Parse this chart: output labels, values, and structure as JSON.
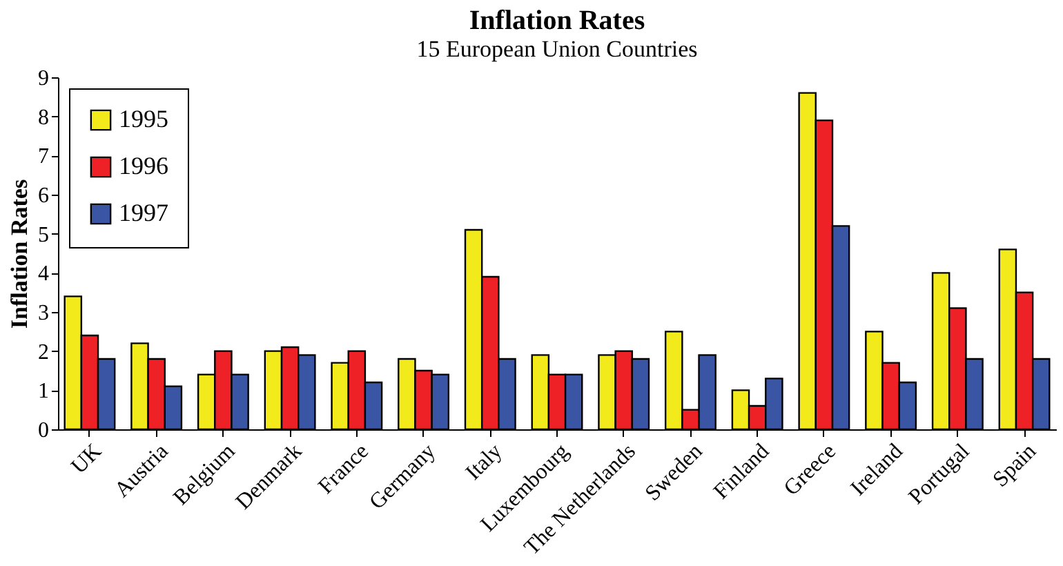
{
  "chart_data": {
    "type": "bar",
    "title": "Inflation Rates",
    "subtitle": "15 European Union Countries",
    "ylabel": "Inflation Rates",
    "categories": [
      "UK",
      "Austria",
      "Belgium",
      "Denmark",
      "France",
      "Germany",
      "Italy",
      "Luxembourg",
      "The Netherlands",
      "Sweden",
      "Finland",
      "Greece",
      "Ireland",
      "Portugal",
      "Spain"
    ],
    "series": [
      {
        "name": "1995",
        "color": "#f2ea1a",
        "values": [
          3.4,
          2.2,
          1.4,
          2.0,
          1.7,
          1.8,
          5.1,
          1.9,
          1.9,
          2.5,
          1.0,
          8.6,
          2.5,
          4.0,
          4.6
        ]
      },
      {
        "name": "1996",
        "color": "#ee2127",
        "values": [
          2.4,
          1.8,
          2.0,
          2.1,
          2.0,
          1.5,
          3.9,
          1.4,
          2.0,
          0.5,
          0.6,
          7.9,
          1.7,
          3.1,
          3.5
        ]
      },
      {
        "name": "1997",
        "color": "#3a55a4",
        "values": [
          1.8,
          1.1,
          1.4,
          1.9,
          1.2,
          1.4,
          1.8,
          1.4,
          1.8,
          1.9,
          1.3,
          5.2,
          1.2,
          1.8,
          1.8
        ]
      }
    ],
    "ylim": [
      0,
      9
    ],
    "yticks": [
      0,
      1,
      2,
      3,
      4,
      5,
      6,
      7,
      8,
      9
    ],
    "grid": false,
    "legend": "top left"
  }
}
